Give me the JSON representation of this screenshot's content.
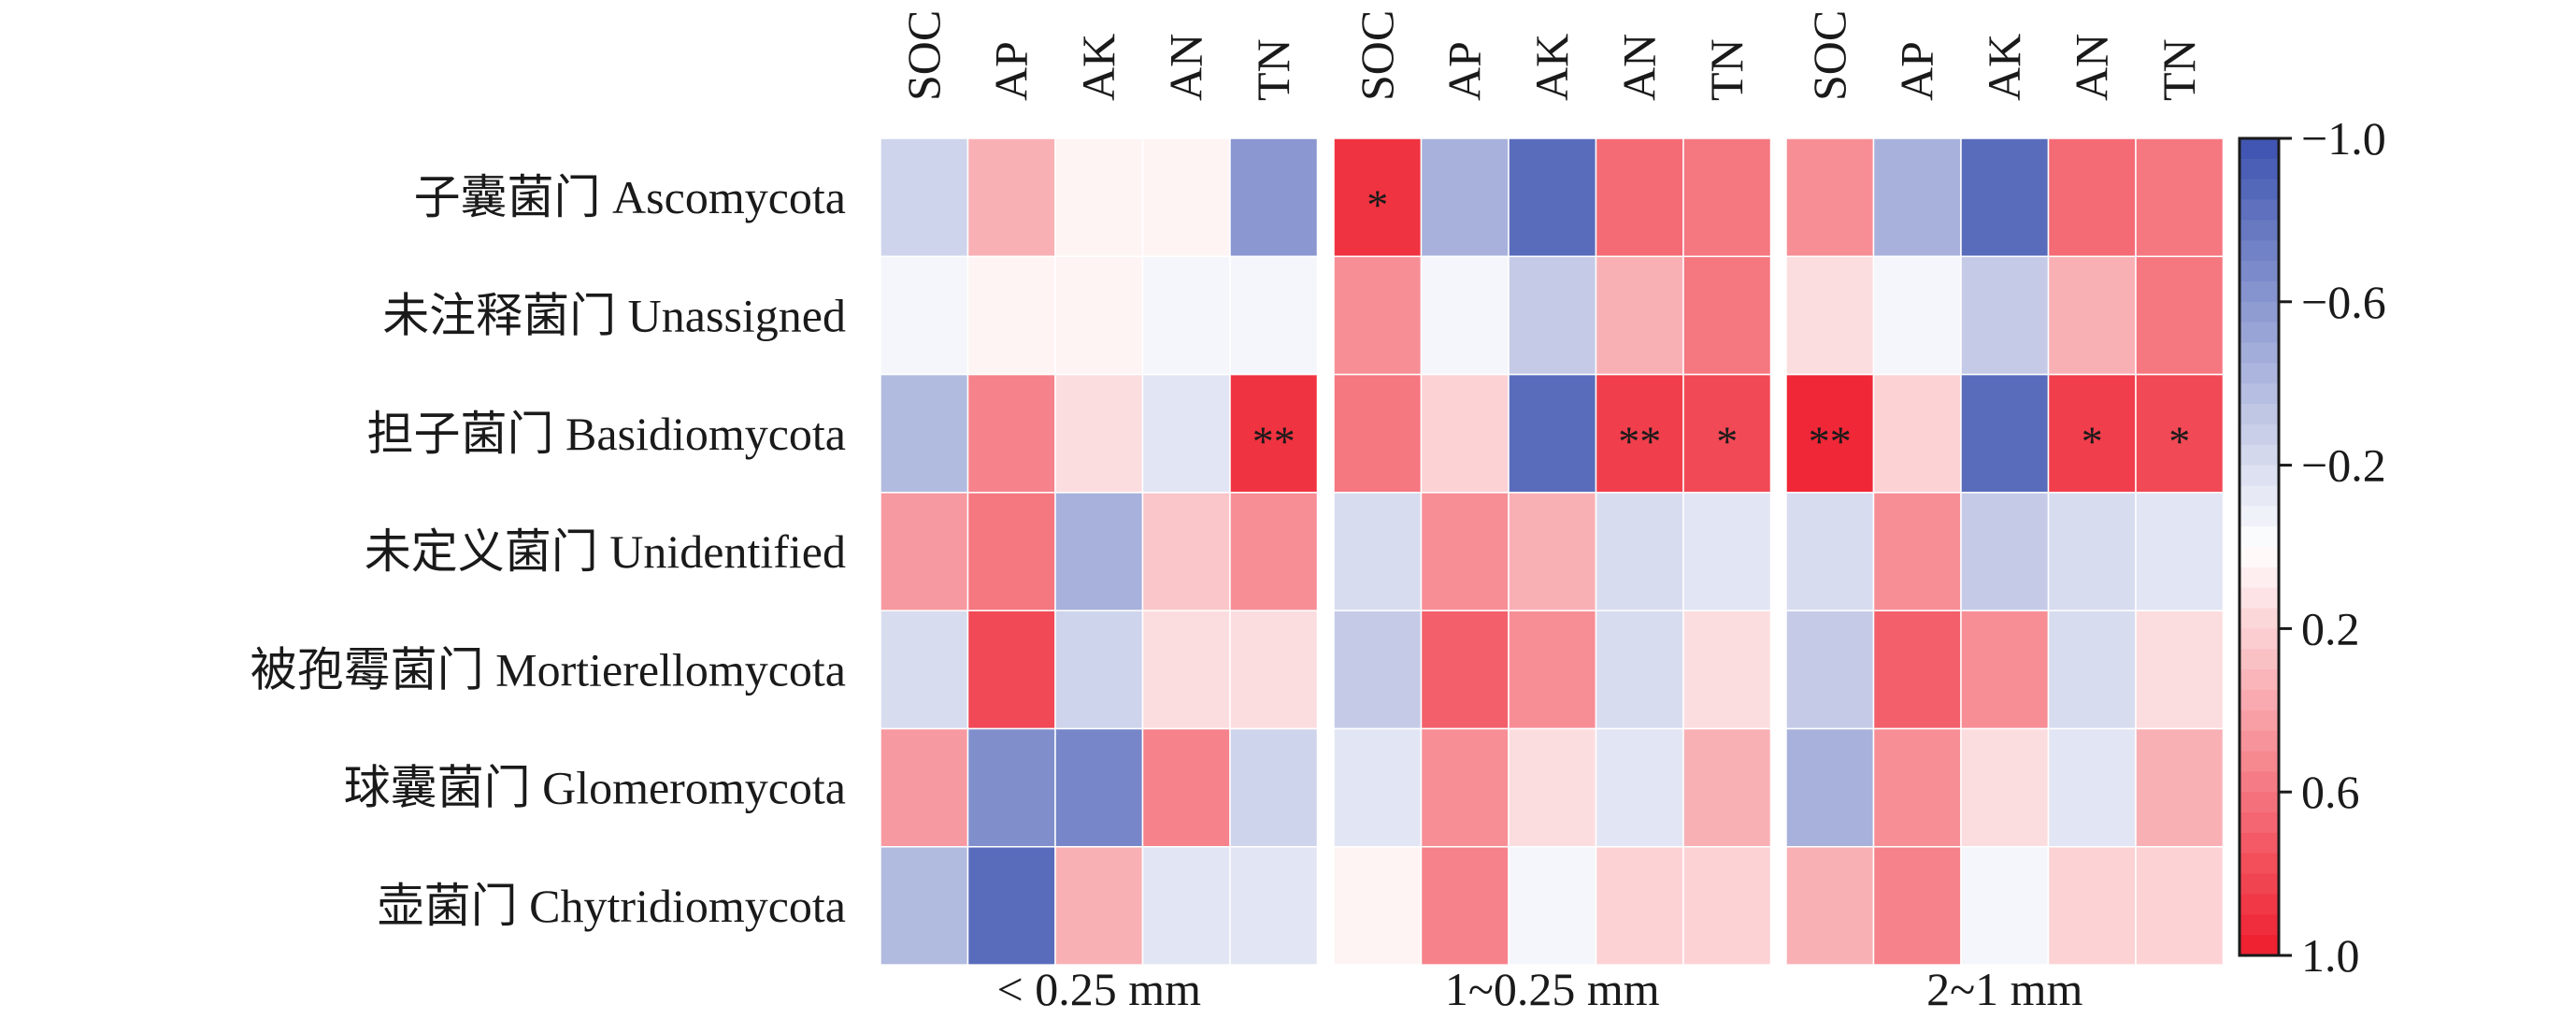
{
  "chart_data": {
    "type": "heatmap",
    "title": "",
    "rows": [
      "子囊菌门 Ascomycota",
      "未注释菌门 Unassigned",
      "担子菌门 Basidiomycota",
      "未定义菌门 Unidentified",
      "被孢霉菌门 Mortierellomycota",
      "球囊菌门 Glomeromycota",
      "壶菌门 Chytridiomycota"
    ],
    "variables": [
      "SOC",
      "AP",
      "AK",
      "AN",
      "TN"
    ],
    "groups": [
      {
        "name": "< 0.25 mm",
        "values": [
          [
            -0.25,
            0.35,
            0.05,
            0.05,
            -0.6
          ],
          [
            -0.05,
            0.05,
            0.05,
            -0.05,
            -0.05
          ],
          [
            -0.4,
            0.55,
            0.15,
            -0.15,
            0.9
          ],
          [
            0.45,
            0.6,
            -0.45,
            0.25,
            0.5
          ],
          [
            -0.2,
            0.8,
            -0.25,
            0.15,
            0.15
          ],
          [
            0.45,
            -0.65,
            -0.7,
            0.55,
            -0.25
          ],
          [
            -0.4,
            -0.85,
            0.35,
            -0.15,
            -0.15
          ]
        ],
        "significance": [
          [
            "",
            "",
            "",
            "",
            ""
          ],
          [
            "",
            "",
            "",
            "",
            ""
          ],
          [
            "",
            "",
            "",
            "",
            "**"
          ],
          [
            "",
            "",
            "",
            "",
            ""
          ],
          [
            "",
            "",
            "",
            "",
            ""
          ],
          [
            "",
            "",
            "",
            "",
            ""
          ],
          [
            "",
            "",
            "",
            "",
            ""
          ]
        ]
      },
      {
        "name": "1~0.25 mm",
        "values": [
          [
            0.9,
            -0.45,
            -0.85,
            0.65,
            0.6
          ],
          [
            0.5,
            -0.05,
            -0.3,
            0.35,
            0.6
          ],
          [
            0.6,
            0.2,
            -0.85,
            0.85,
            0.8
          ],
          [
            -0.2,
            0.5,
            0.35,
            -0.2,
            -0.15
          ],
          [
            -0.3,
            0.7,
            0.5,
            -0.2,
            0.15
          ],
          [
            -0.15,
            0.5,
            0.15,
            -0.15,
            0.35
          ],
          [
            0.05,
            0.55,
            -0.05,
            0.2,
            0.2
          ]
        ],
        "significance": [
          [
            "*",
            "",
            "",
            "",
            ""
          ],
          [
            "",
            "",
            "",
            "",
            ""
          ],
          [
            "",
            "",
            "",
            "**",
            "*"
          ],
          [
            "",
            "",
            "",
            "",
            ""
          ],
          [
            "",
            "",
            "",
            "",
            ""
          ],
          [
            "",
            "",
            "",
            "",
            ""
          ],
          [
            "",
            "",
            "",
            "",
            ""
          ]
        ]
      },
      {
        "name": "2~1 mm",
        "values": [
          [
            0.5,
            -0.45,
            -0.85,
            0.65,
            0.6
          ],
          [
            0.15,
            -0.05,
            -0.3,
            0.35,
            0.6
          ],
          [
            0.95,
            0.2,
            -0.85,
            0.85,
            0.8
          ],
          [
            -0.2,
            0.5,
            -0.3,
            -0.2,
            -0.15
          ],
          [
            -0.3,
            0.7,
            0.5,
            -0.2,
            0.15
          ],
          [
            -0.45,
            0.5,
            0.15,
            -0.15,
            0.35
          ],
          [
            0.35,
            0.55,
            -0.05,
            0.2,
            0.2
          ]
        ],
        "significance": [
          [
            "",
            "",
            "",
            "",
            ""
          ],
          [
            "",
            "",
            "",
            "",
            ""
          ],
          [
            "**",
            "",
            "",
            "*",
            "*"
          ],
          [
            "",
            "",
            "",
            "",
            ""
          ],
          [
            "",
            "",
            "",
            "",
            ""
          ],
          [
            "",
            "",
            "",
            "",
            ""
          ],
          [
            "",
            "",
            "",
            "",
            ""
          ]
        ]
      }
    ],
    "colorbar": {
      "range": [
        1.0,
        -1.0
      ],
      "ticks": [
        "−1.0",
        "−0.6",
        "−0.2",
        "0.2",
        "0.6",
        "1.0"
      ],
      "negative_color": "#3c52b0",
      "mid_color": "#ffffff",
      "positive_color": "#ee1c2c"
    }
  }
}
